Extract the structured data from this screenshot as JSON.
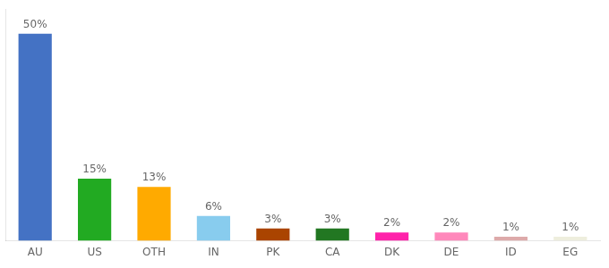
{
  "chart_data": {
    "type": "bar",
    "categories": [
      "AU",
      "US",
      "OTH",
      "IN",
      "PK",
      "CA",
      "DK",
      "DE",
      "ID",
      "EG"
    ],
    "values": [
      50,
      15,
      13,
      6,
      3,
      3,
      2,
      2,
      1,
      1
    ],
    "value_labels": [
      "50%",
      "15%",
      "13%",
      "6%",
      "3%",
      "3%",
      "2%",
      "2%",
      "1%",
      "1%"
    ],
    "colors": [
      "#4472c4",
      "#22aa22",
      "#ffaa00",
      "#88ccee",
      "#aa4400",
      "#227722",
      "#ff22aa",
      "#ff88bb",
      "#ddaaaa",
      "#eeeedd"
    ],
    "ylim": [
      0,
      56
    ],
    "grid": false,
    "data_labels": true,
    "tick_labels": "x"
  }
}
